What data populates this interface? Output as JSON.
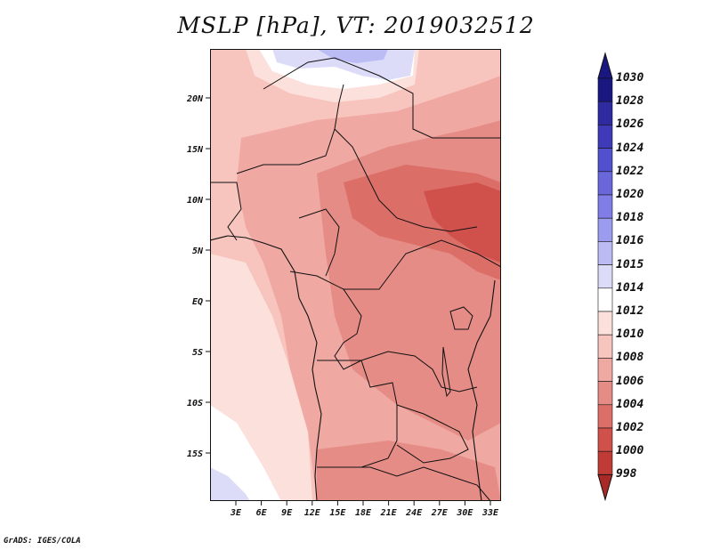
{
  "title": "MSLP [hPa], VT: 2019032512",
  "credit": "GrADS: IGES/COLA",
  "map": {
    "y_ticks": [
      "20N",
      "15N",
      "10N",
      "5N",
      "EQ",
      "5S",
      "10S",
      "15S"
    ],
    "x_ticks": [
      "3E",
      "6E",
      "9E",
      "12E",
      "15E",
      "18E",
      "21E",
      "24E",
      "27E",
      "30E",
      "33E"
    ]
  },
  "colorbar": {
    "labels": [
      "1030",
      "1028",
      "1026",
      "1024",
      "1022",
      "1020",
      "1018",
      "1016",
      "1015",
      "1014",
      "1012",
      "1010",
      "1008",
      "1006",
      "1004",
      "1002",
      "1000",
      "998"
    ],
    "colors": [
      "#1a1780",
      "#2e2aa0",
      "#3f3bb8",
      "#5250cc",
      "#6a67db",
      "#807ee6",
      "#9c9cee",
      "#bcbcf4",
      "#dcdcf8",
      "#ffffff",
      "#fce0dc",
      "#f8c4be",
      "#f0a8a2",
      "#e68c86",
      "#dc6e68",
      "#d0504c",
      "#c03a36",
      "#a82a26"
    ],
    "top_cap": "#1a1780",
    "bottom_cap": "#a82a26"
  }
}
